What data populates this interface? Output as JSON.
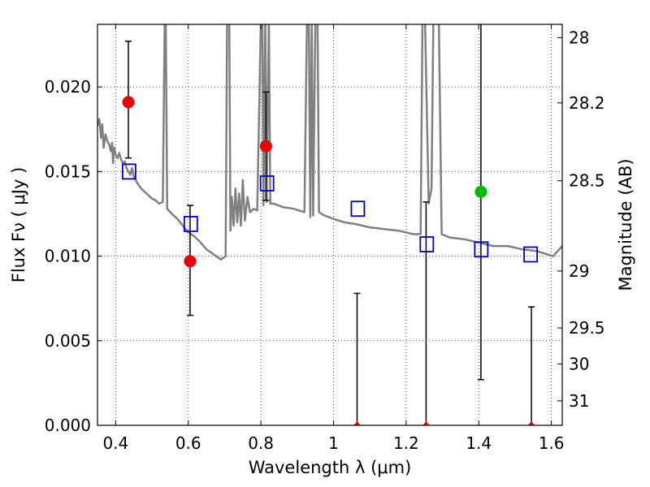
{
  "chart_data": {
    "type": "scatter",
    "xlabel": "Wavelength  λ (μm)",
    "ylabel": "Flux  Fν  ( μJy )",
    "y2label": "Magnitude (AB)",
    "xlim": [
      0.35,
      1.63
    ],
    "ylim": [
      0.0,
      0.0237
    ],
    "grid": true,
    "xticks": [
      {
        "value": 0.4,
        "label": "0.4"
      },
      {
        "value": 0.6,
        "label": "0.6"
      },
      {
        "value": 0.8,
        "label": "0.8"
      },
      {
        "value": 1.0,
        "label": "1"
      },
      {
        "value": 1.2,
        "label": "1.2"
      },
      {
        "value": 1.4,
        "label": "1.4"
      },
      {
        "value": 1.6,
        "label": "1.6"
      }
    ],
    "yticks": [
      {
        "value": 0.0,
        "label": "0.000"
      },
      {
        "value": 0.005,
        "label": "0.005"
      },
      {
        "value": 0.01,
        "label": "0.010"
      },
      {
        "value": 0.015,
        "label": "0.015"
      },
      {
        "value": 0.02,
        "label": "0.020"
      }
    ],
    "y2ticks": [
      {
        "value": 28,
        "label": "28"
      },
      {
        "value": 28.2,
        "label": "28.2"
      },
      {
        "value": 28.5,
        "label": "28.5"
      },
      {
        "value": 29,
        "label": "29"
      },
      {
        "value": 29.5,
        "label": "29.5"
      },
      {
        "value": 30,
        "label": "30"
      },
      {
        "value": 31,
        "label": "31"
      }
    ],
    "colors": {
      "model": "#808080",
      "model_points": "#0000cc",
      "detection": "#00bb00",
      "red_points": "#ee0000",
      "errorbar": "#000000",
      "grid": "#555555"
    },
    "series": [
      {
        "type": "line",
        "points": [
          [
            0.35,
            0.0177
          ],
          [
            0.355,
            0.0181
          ],
          [
            0.36,
            0.017
          ],
          [
            0.363,
            0.0178
          ],
          [
            0.367,
            0.0164
          ],
          [
            0.372,
            0.0172
          ],
          [
            0.377,
            0.0168
          ],
          [
            0.382,
            0.0166
          ],
          [
            0.387,
            0.0162
          ],
          [
            0.39,
            0.0167
          ],
          [
            0.393,
            0.0155
          ],
          [
            0.396,
            0.0164
          ],
          [
            0.4,
            0.016
          ],
          [
            0.405,
            0.0158
          ],
          [
            0.41,
            0.0161
          ],
          [
            0.415,
            0.0157
          ],
          [
            0.42,
            0.0155
          ],
          [
            0.425,
            0.0156
          ],
          [
            0.43,
            0.0152
          ],
          [
            0.435,
            0.015
          ],
          [
            0.44,
            0.0148
          ],
          [
            0.445,
            0.0152
          ],
          [
            0.45,
            0.0147
          ],
          [
            0.46,
            0.0143
          ],
          [
            0.47,
            0.014
          ],
          [
            0.48,
            0.0138
          ],
          [
            0.49,
            0.0136
          ],
          [
            0.5,
            0.0134
          ],
          [
            0.51,
            0.0133
          ],
          [
            0.52,
            0.0131
          ],
          [
            0.53,
            0.0132
          ],
          [
            0.535,
            0.024
          ],
          [
            0.538,
            0.024
          ],
          [
            0.542,
            0.0128
          ],
          [
            0.555,
            0.0125
          ],
          [
            0.57,
            0.0122
          ],
          [
            0.585,
            0.0118
          ],
          [
            0.6,
            0.0114
          ],
          [
            0.615,
            0.0112
          ],
          [
            0.63,
            0.0109
          ],
          [
            0.65,
            0.0104
          ],
          [
            0.67,
            0.0101
          ],
          [
            0.69,
            0.0098
          ],
          [
            0.703,
            0.01
          ],
          [
            0.707,
            0.024
          ],
          [
            0.713,
            0.024
          ],
          [
            0.716,
            0.0115
          ],
          [
            0.72,
            0.0135
          ],
          [
            0.725,
            0.0118
          ],
          [
            0.73,
            0.014
          ],
          [
            0.735,
            0.012
          ],
          [
            0.74,
            0.0137
          ],
          [
            0.745,
            0.0118
          ],
          [
            0.75,
            0.0145
          ],
          [
            0.756,
            0.0121
          ],
          [
            0.763,
            0.0135
          ],
          [
            0.77,
            0.0126
          ],
          [
            0.78,
            0.0128
          ],
          [
            0.79,
            0.0127
          ],
          [
            0.8,
            0.024
          ],
          [
            0.804,
            0.024
          ],
          [
            0.807,
            0.013
          ],
          [
            0.812,
            0.024
          ],
          [
            0.816,
            0.0132
          ],
          [
            0.822,
            0.024
          ],
          [
            0.826,
            0.0131
          ],
          [
            0.836,
            0.0131
          ],
          [
            0.86,
            0.0129
          ],
          [
            0.89,
            0.0128
          ],
          [
            0.92,
            0.0126
          ],
          [
            0.927,
            0.024
          ],
          [
            0.932,
            0.024
          ],
          [
            0.936,
            0.0123
          ],
          [
            0.94,
            0.024
          ],
          [
            0.944,
            0.0124
          ],
          [
            0.95,
            0.024
          ],
          [
            0.956,
            0.024
          ],
          [
            0.96,
            0.0126
          ],
          [
            0.975,
            0.0124
          ],
          [
            1.0,
            0.0122
          ],
          [
            1.03,
            0.012
          ],
          [
            1.06,
            0.0119
          ],
          [
            1.1,
            0.0117
          ],
          [
            1.14,
            0.0116
          ],
          [
            1.18,
            0.0115
          ],
          [
            1.22,
            0.0113
          ],
          [
            1.24,
            0.0113
          ],
          [
            1.245,
            0.024
          ],
          [
            1.252,
            0.024
          ],
          [
            1.262,
            0.0131
          ],
          [
            1.27,
            0.014
          ],
          [
            1.275,
            0.024
          ],
          [
            1.29,
            0.024
          ],
          [
            1.298,
            0.0113
          ],
          [
            1.32,
            0.0111
          ],
          [
            1.36,
            0.011
          ],
          [
            1.4,
            0.0108
          ],
          [
            1.44,
            0.0106
          ],
          [
            1.48,
            0.0106
          ],
          [
            1.52,
            0.0104
          ],
          [
            1.56,
            0.0103
          ],
          [
            1.59,
            0.0101
          ],
          [
            1.605,
            0.01
          ],
          [
            1.63,
            0.0106
          ]
        ]
      },
      {
        "type": "scatter",
        "marker": "open-square",
        "points": [
          [
            0.437,
            0.015
          ],
          [
            0.607,
            0.0119
          ],
          [
            0.817,
            0.0143
          ],
          [
            1.067,
            0.0128
          ],
          [
            1.257,
            0.0107
          ],
          [
            1.407,
            0.0104
          ],
          [
            1.543,
            0.0101
          ]
        ]
      },
      {
        "type": "scatter",
        "marker": "filled-circle",
        "points": [
          [
            0.435,
            0.0191
          ],
          [
            0.605,
            0.0097
          ],
          [
            0.814,
            0.0165
          ]
        ]
      },
      {
        "type": "scatter",
        "marker": "filled-circle",
        "points": [
          [
            1.406,
            0.0138
          ]
        ]
      },
      {
        "type": "scatter",
        "marker": "filled-triangle",
        "points": [
          [
            1.065,
            0.0
          ],
          [
            1.255,
            0.0
          ],
          [
            1.545,
            0.0
          ]
        ]
      }
    ],
    "errorbars": [
      {
        "x": 0.435,
        "low": 0.0158,
        "high": 0.0227
      },
      {
        "x": 0.605,
        "low": 0.0065,
        "high": 0.013
      },
      {
        "x": 0.814,
        "low": 0.0133,
        "high": 0.0197
      },
      {
        "x": 1.065,
        "low": 0.0,
        "high": 0.0078
      },
      {
        "x": 1.255,
        "low": 0.0,
        "high": 0.0132
      },
      {
        "x": 1.406,
        "low": 0.0027,
        "high": 0.024
      },
      {
        "x": 1.545,
        "low": 0.0,
        "high": 0.007
      }
    ]
  }
}
